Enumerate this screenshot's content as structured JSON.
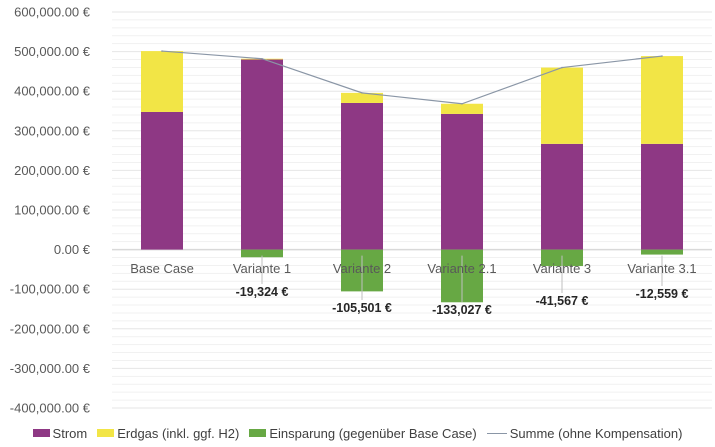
{
  "chart_data": {
    "type": "bar",
    "stacked": true,
    "title": "",
    "xlabel": "",
    "ylabel": "",
    "ylim": [
      -400000,
      600000
    ],
    "y_major_step": 100000,
    "y_minor_step": 20000,
    "grid": true,
    "legend_position": "bottom",
    "categories": [
      "Base Case",
      "Variante 1",
      "Variante 2",
      "Variante 2.1",
      "Variante 3",
      "Variante 3.1"
    ],
    "y_ticks": [
      {
        "value": 600000,
        "label": "600,000.00 €"
      },
      {
        "value": 500000,
        "label": "500,000.00 €"
      },
      {
        "value": 400000,
        "label": "400,000.00 €"
      },
      {
        "value": 300000,
        "label": "300,000.00 €"
      },
      {
        "value": 200000,
        "label": "200,000.00 €"
      },
      {
        "value": 100000,
        "label": "100,000.00 €"
      },
      {
        "value": 0,
        "label": "0.00 €"
      },
      {
        "value": -100000,
        "label": "-100,000.00 €"
      },
      {
        "value": -200000,
        "label": "-200,000.00 €"
      },
      {
        "value": -300000,
        "label": "-300,000.00 €"
      },
      {
        "value": -400000,
        "label": "-400,000.00 €"
      }
    ],
    "series": [
      {
        "name": "Strom",
        "kind": "bar",
        "color": "#8e3884",
        "values": [
          347600,
          480000,
          370300,
          342600,
          267000,
          267000
        ]
      },
      {
        "name": "Erdgas (inkl. ggf. H2)",
        "kind": "bar",
        "color": "#f2e546",
        "values": [
          153700,
          2000,
          25500,
          25700,
          192700,
          221700
        ]
      },
      {
        "name": "Einsparung (gegenüber Base Case)",
        "kind": "bar",
        "color": "#67a844",
        "values": [
          0,
          -19324,
          -105501,
          -133027,
          -41567,
          -12559
        ],
        "data_labels": [
          "",
          "-19,324 €",
          "-105,501 €",
          "-133,027 €",
          "-41,567 €",
          "-12,559 €"
        ]
      },
      {
        "name": "Summe (ohne Kompensation)",
        "kind": "line",
        "color": "#8a96a6",
        "values": [
          501300,
          481976,
          395799,
          368273,
          459733,
          488741
        ]
      }
    ]
  },
  "legend": {
    "items": [
      {
        "label": "Strom",
        "color": "#8e3884",
        "type": "box"
      },
      {
        "label": "Erdgas (inkl. ggf. H2)",
        "color": "#f2e546",
        "type": "box"
      },
      {
        "label": "Einsparung (gegenüber Base Case)",
        "color": "#67a844",
        "type": "box"
      },
      {
        "label": "Summe (ohne Kompensation)",
        "color": "#8a96a6",
        "type": "line"
      }
    ]
  }
}
